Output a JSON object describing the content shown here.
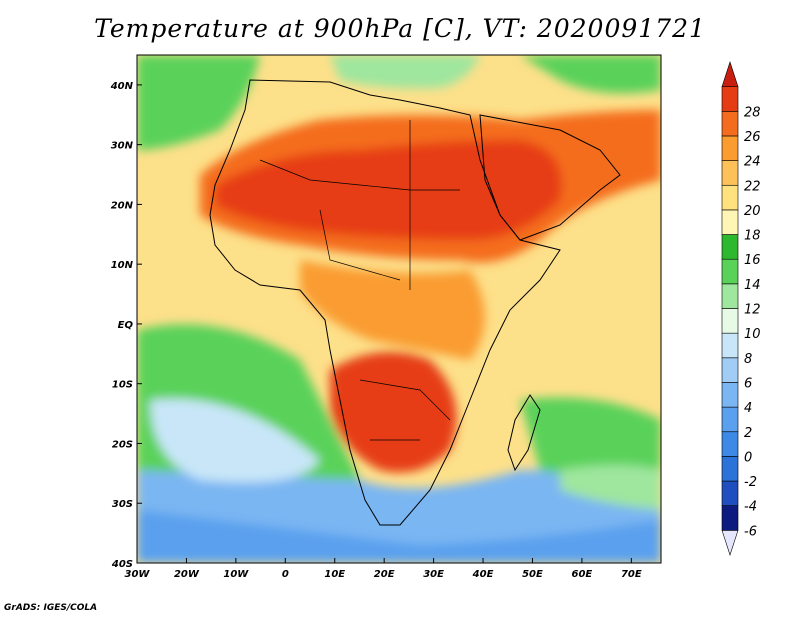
{
  "title": "Temperature at 900hPa [C], VT: 2020091721",
  "credit": "GrADS: IGES/COLA",
  "map": {
    "lon_range": [
      -30,
      76
    ],
    "lat_range": [
      -40,
      45
    ],
    "x_ticks": [
      {
        "value": -30,
        "label": "30W"
      },
      {
        "value": -20,
        "label": "20W"
      },
      {
        "value": -10,
        "label": "10W"
      },
      {
        "value": 0,
        "label": "0"
      },
      {
        "value": 10,
        "label": "10E"
      },
      {
        "value": 20,
        "label": "20E"
      },
      {
        "value": 30,
        "label": "30E"
      },
      {
        "value": 40,
        "label": "40E"
      },
      {
        "value": 50,
        "label": "50E"
      },
      {
        "value": 60,
        "label": "60E"
      },
      {
        "value": 70,
        "label": "70E"
      }
    ],
    "y_ticks": [
      {
        "value": 40,
        "label": "40N"
      },
      {
        "value": 30,
        "label": "30N"
      },
      {
        "value": 20,
        "label": "20N"
      },
      {
        "value": 10,
        "label": "10N"
      },
      {
        "value": 0,
        "label": "EQ"
      },
      {
        "value": -10,
        "label": "10S"
      },
      {
        "value": -20,
        "label": "20S"
      },
      {
        "value": -30,
        "label": "30S"
      },
      {
        "value": -40,
        "label": "40S"
      }
    ]
  },
  "colorbar": {
    "levels": [
      -6,
      -4,
      -2,
      0,
      2,
      4,
      6,
      8,
      10,
      12,
      14,
      16,
      18,
      20,
      22,
      24,
      26,
      28
    ],
    "colors": [
      "#e6e6ff",
      "#0d1a80",
      "#1f4fbf",
      "#2b72d9",
      "#3c8ae6",
      "#5aa0ee",
      "#7ab6f2",
      "#a0ccf5",
      "#c8e6f8",
      "#e6fae6",
      "#9fe69f",
      "#5ad25a",
      "#2eb82e",
      "#fff5b4",
      "#ffe17e",
      "#fdc15a",
      "#fa9c30",
      "#f46d1f",
      "#e63c14",
      "#c81e10"
    ]
  }
}
